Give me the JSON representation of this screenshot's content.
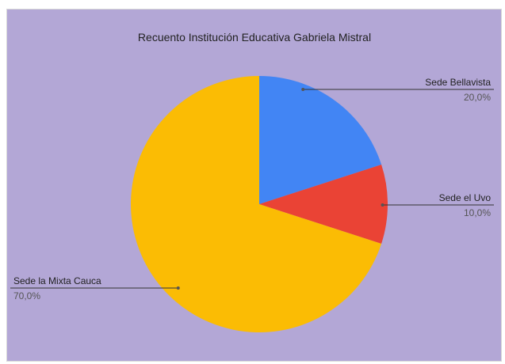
{
  "chart_data": {
    "type": "pie",
    "title": "Recuento  Institución Educativa Gabriela Mistral",
    "background": "#b3a7d6",
    "slices": [
      {
        "label": "Sede Bellavista",
        "value": 20.0,
        "value_label": "20,0%",
        "color": "#4285f4"
      },
      {
        "label": "Sede el Uvo",
        "value": 10.0,
        "value_label": "10,0%",
        "color": "#ea4335"
      },
      {
        "label": "Sede la Mixta Cauca",
        "value": 70.0,
        "value_label": "70,0%",
        "color": "#fbbc04"
      }
    ],
    "legend": "none"
  }
}
